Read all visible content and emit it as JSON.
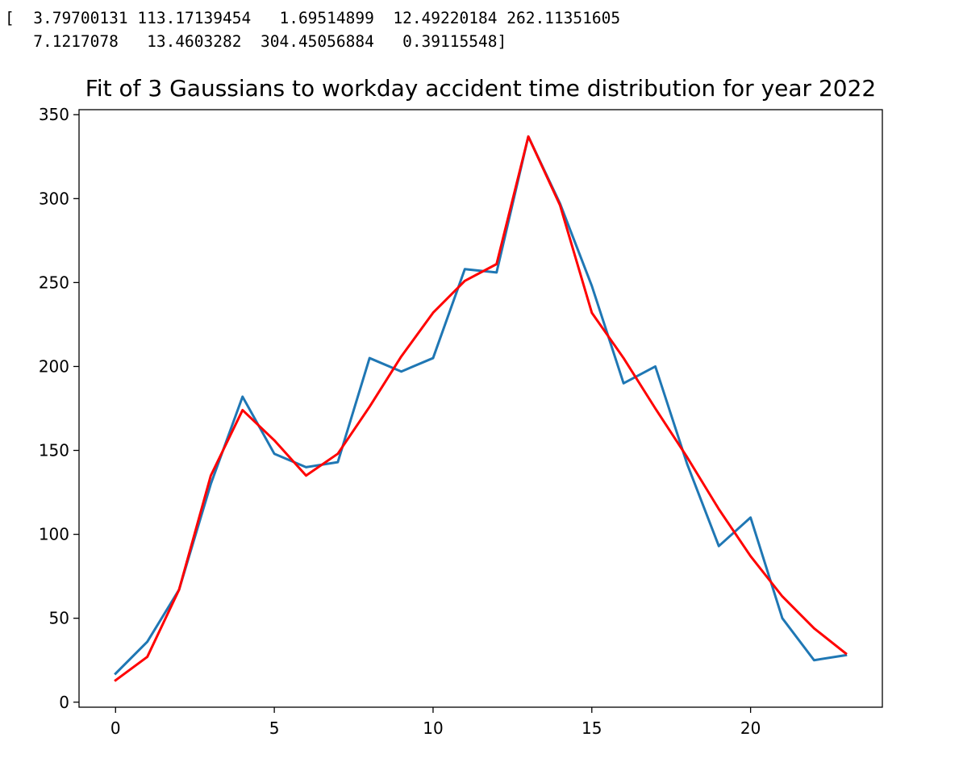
{
  "output": {
    "lines": [
      "[  3.79700131 113.17139454   1.69514899  12.49220184 262.11351605",
      "   7.1217078   13.4603282  304.45056884   0.39115548]"
    ]
  },
  "chart_data": {
    "type": "line",
    "title": "Fit of 3 Gaussians to workday accident time distribution for year 2022",
    "xlabel": "",
    "ylabel": "",
    "xlim": [
      -1.15,
      24.15
    ],
    "ylim": [
      -3,
      353
    ],
    "xticks": [
      0,
      5,
      10,
      15,
      20
    ],
    "yticks": [
      0,
      50,
      100,
      150,
      200,
      250,
      300,
      350
    ],
    "grid": false,
    "x": [
      0,
      1,
      2,
      3,
      4,
      5,
      6,
      7,
      8,
      9,
      10,
      11,
      12,
      13,
      14,
      15,
      16,
      17,
      18,
      19,
      20,
      21,
      22,
      23
    ],
    "series": [
      {
        "color": "#1f77b4",
        "values": [
          17,
          36,
          67,
          130,
          182,
          148,
          140,
          143,
          205,
          197,
          205,
          258,
          256,
          337,
          297,
          248,
          190,
          200,
          142,
          93,
          110,
          50,
          25,
          28
        ]
      },
      {
        "color": "#ff0000",
        "values": [
          13,
          27,
          67,
          135,
          174,
          156,
          135,
          148,
          176,
          206,
          232,
          251,
          261,
          337,
          296,
          232,
          205,
          175,
          146,
          115,
          87,
          63,
          44,
          29
        ]
      }
    ]
  }
}
